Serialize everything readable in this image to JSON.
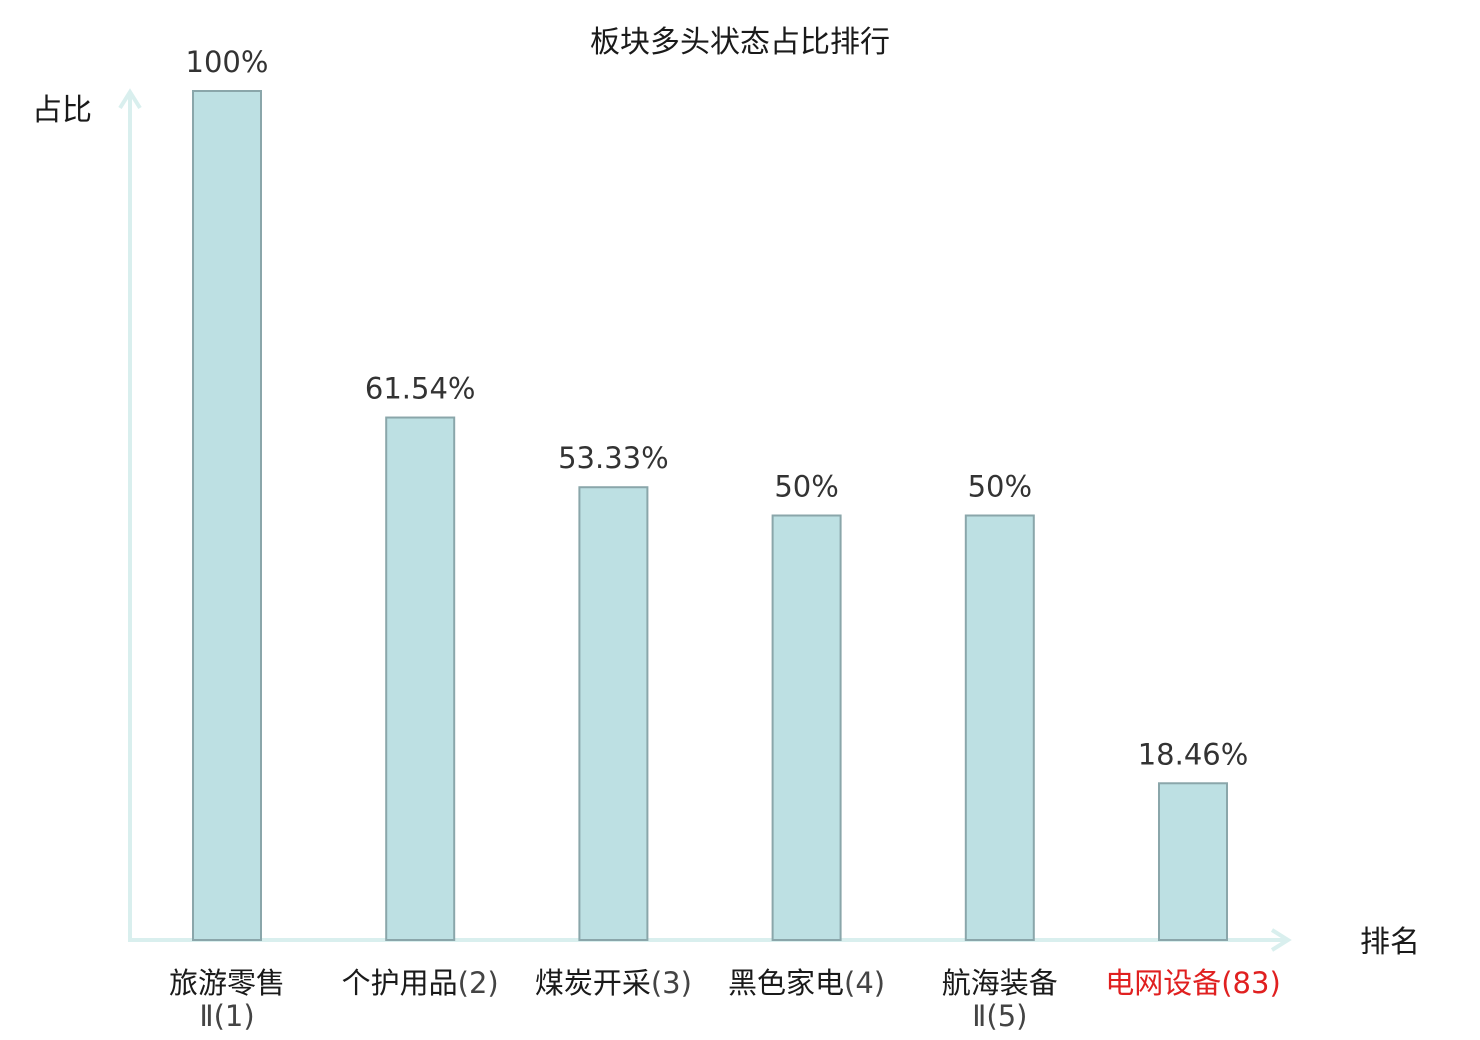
{
  "chart_data": {
    "type": "bar",
    "title": "板块多头状态占比排行",
    "xlabel": "排名",
    "ylabel": "占比",
    "ylim": [
      0,
      100
    ],
    "grid": false,
    "categories": [
      {
        "name": "旅游零售",
        "rank_suffix": "Ⅱ(1)",
        "highlight": false
      },
      {
        "name": "个护用品",
        "rank_suffix": "(2)",
        "highlight": false
      },
      {
        "name": "煤炭开采",
        "rank_suffix": "(3)",
        "highlight": false
      },
      {
        "name": "黑色家电",
        "rank_suffix": "(4)",
        "highlight": false
      },
      {
        "name": "航海装备",
        "rank_suffix": "Ⅱ(5)",
        "highlight": false
      },
      {
        "name": "电网设备",
        "rank_suffix": "(83)",
        "highlight": true
      }
    ],
    "values": [
      100,
      61.54,
      53.33,
      50,
      50,
      18.46
    ],
    "value_labels": [
      "100%",
      "61.54%",
      "53.33%",
      "50%",
      "50%",
      "18.46%"
    ]
  },
  "colors": {
    "bar_fill": "#bde0e3",
    "bar_stroke": "#8aa6aa",
    "axis": "#d9efee",
    "text": "#1a1a1a",
    "value_text": "#333333",
    "highlight": "#e02020"
  }
}
